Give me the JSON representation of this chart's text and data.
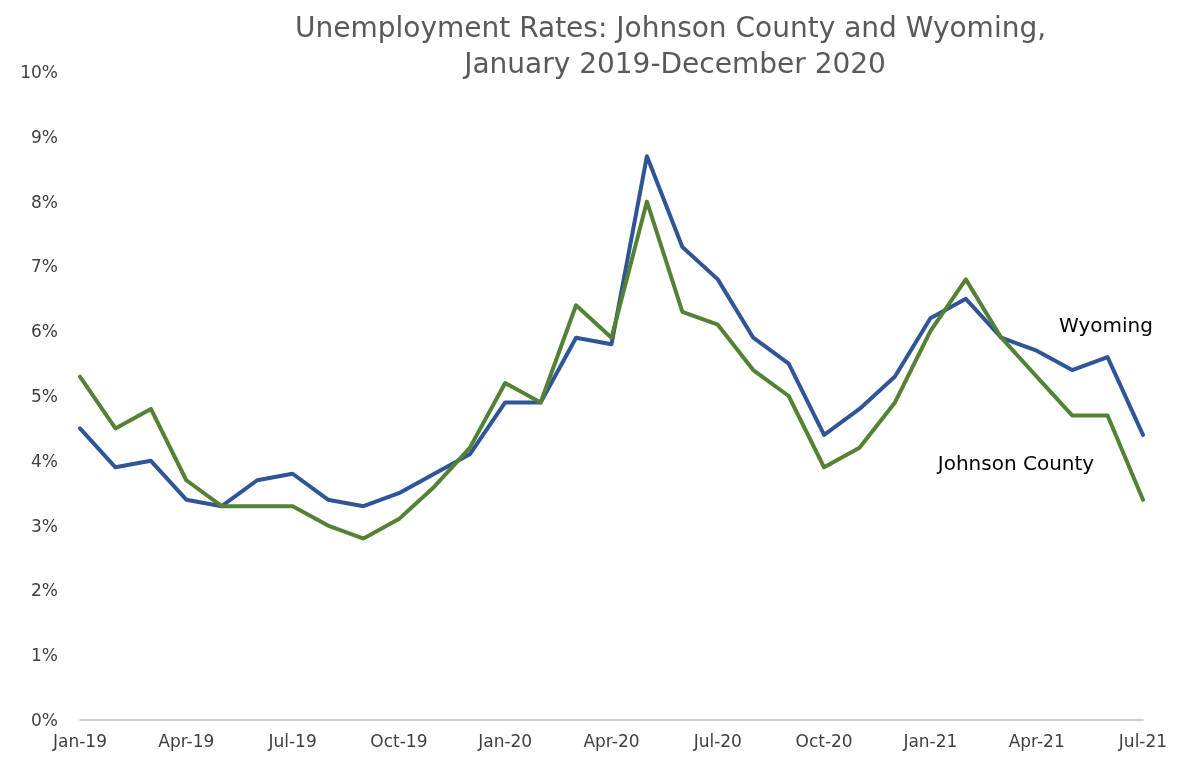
{
  "chart_data": {
    "type": "line",
    "title": "Unemployment Rates: Johnson County and Wyoming, January 2019-December 2020",
    "categories": [
      "Jan-19",
      null,
      null,
      "Apr-19",
      null,
      null,
      "Jul-19",
      null,
      null,
      "Oct-19",
      null,
      null,
      "Jan-20",
      null,
      null,
      "Apr-20",
      null,
      null,
      "Jul-20",
      null,
      null,
      "Oct-20",
      null,
      null,
      "Jan-21",
      null,
      null,
      "Apr-21",
      null,
      null,
      "Jul-21"
    ],
    "series": [
      {
        "name": "Wyoming",
        "color": "#2f5597",
        "values": [
          4.5,
          3.9,
          4.0,
          3.4,
          3.3,
          3.7,
          3.8,
          3.4,
          3.3,
          3.5,
          3.8,
          4.1,
          4.9,
          4.9,
          5.9,
          5.8,
          8.7,
          7.3,
          6.8,
          5.9,
          5.5,
          4.4,
          4.8,
          5.3,
          6.2,
          6.5,
          5.9,
          5.7,
          5.4,
          5.6,
          4.4
        ]
      },
      {
        "name": "Johnson County",
        "color": "#548235",
        "values": [
          5.3,
          4.5,
          4.8,
          3.7,
          3.3,
          3.3,
          3.3,
          3.0,
          2.8,
          3.1,
          3.6,
          4.2,
          5.2,
          4.9,
          6.4,
          5.9,
          8.0,
          6.3,
          6.1,
          5.4,
          5.0,
          3.9,
          4.2,
          4.9,
          6.0,
          6.8,
          5.9,
          5.3,
          4.7,
          4.7,
          3.4
        ]
      }
    ],
    "ylim": [
      0,
      10
    ],
    "yticks": [
      {
        "value": 0,
        "label": "0%"
      },
      {
        "value": 1,
        "label": "1%"
      },
      {
        "value": 2,
        "label": "2%"
      },
      {
        "value": 3,
        "label": "3%"
      },
      {
        "value": 4,
        "label": "4%"
      },
      {
        "value": 5,
        "label": "5%"
      },
      {
        "value": 6,
        "label": "6%"
      },
      {
        "value": 7,
        "label": "7%"
      },
      {
        "value": 8,
        "label": "8%"
      },
      {
        "value": 9,
        "label": "9%"
      },
      {
        "value": 10,
        "label": "10%"
      }
    ],
    "grid": false,
    "legend": false,
    "marker": "none",
    "line_style": "solid"
  }
}
